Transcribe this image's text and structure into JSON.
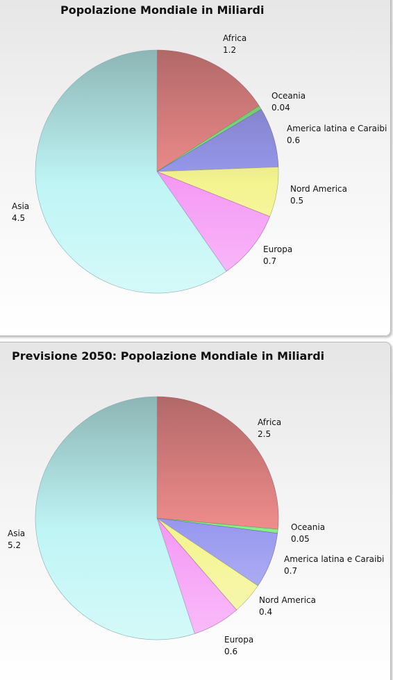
{
  "chart_data": [
    {
      "type": "pie",
      "title": "Popolazione Mondiale in Miliardi",
      "categories": [
        "Africa",
        "Oceania",
        "America latina e Caraibi",
        "Nord America",
        "Europa",
        "Asia"
      ],
      "values": [
        1.2,
        0.04,
        0.6,
        0.5,
        0.7,
        4.5
      ],
      "value_labels": [
        "1.2",
        "0.04",
        "0.6",
        "0.5",
        "0.7",
        "4.5"
      ],
      "colors": [
        "#f08c8c",
        "#88ee88",
        "#9a9af0",
        "#f4f490",
        "#f59af5",
        "#bff5f5"
      ],
      "legend": "none",
      "start_angle": "top, clockwise"
    },
    {
      "type": "pie",
      "title": "Previsione 2050: Popolazione Mondiale in Miliardi",
      "categories": [
        "Africa",
        "Oceania",
        "America latina e Caraibi",
        "Nord America",
        "Europa",
        "Asia"
      ],
      "values": [
        2.5,
        0.05,
        0.7,
        0.4,
        0.6,
        5.2
      ],
      "value_labels": [
        "2.5",
        "0.05",
        "0.7",
        "0.4",
        "0.6",
        "5.2"
      ],
      "colors": [
        "#f08c8c",
        "#88ee88",
        "#9a9af0",
        "#f4f490",
        "#f59af5",
        "#bff5f5"
      ],
      "legend": "none",
      "start_angle": "top, clockwise"
    }
  ]
}
